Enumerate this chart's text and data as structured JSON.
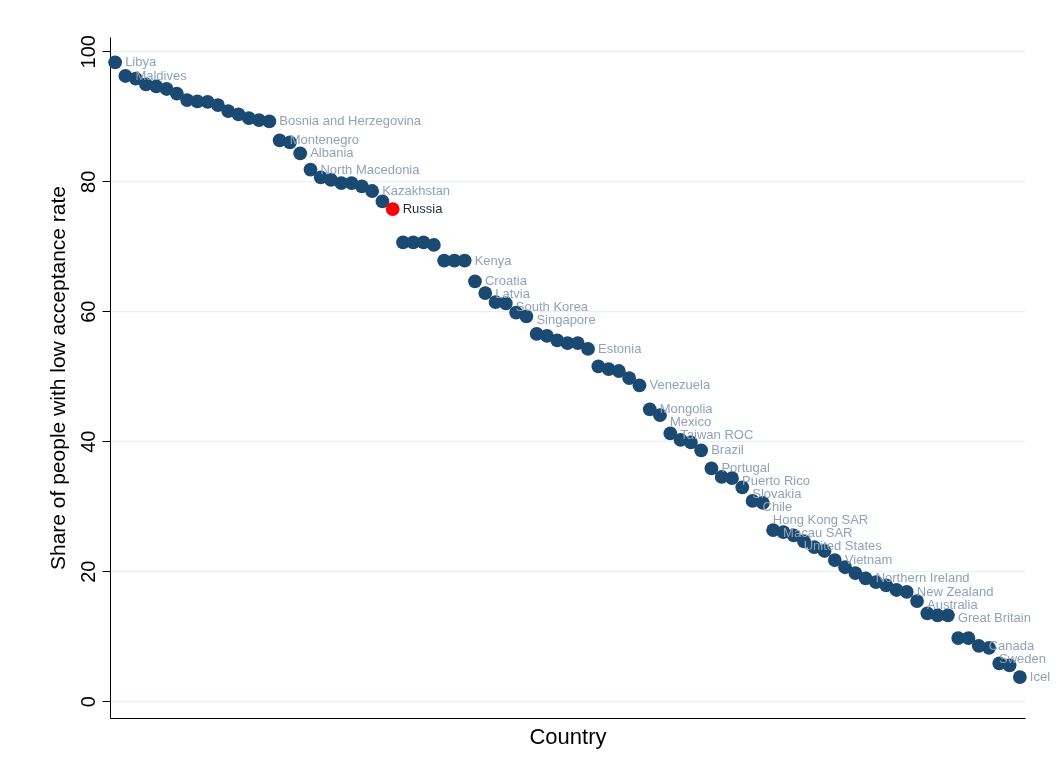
{
  "chart_data": {
    "type": "scatter",
    "xlabel": "Country",
    "ylabel": "Share of people with low acceptance rate",
    "categories": [
      null,
      null,
      null,
      null,
      null,
      null,
      null,
      null,
      null,
      null,
      null,
      null,
      null,
      null,
      null,
      null,
      null,
      null,
      null,
      null,
      null,
      null,
      null,
      null,
      null,
      null,
      null,
      null,
      null,
      null,
      null,
      null,
      null,
      null,
      null,
      null,
      null,
      null,
      null,
      null,
      null,
      null,
      null,
      null,
      null,
      null,
      null,
      null,
      null,
      null,
      null,
      null,
      null,
      null,
      null,
      null,
      null,
      null,
      null,
      null,
      null,
      null,
      null,
      null,
      null,
      null,
      null,
      null,
      null,
      null,
      null,
      null,
      null,
      null,
      null,
      null,
      null,
      null,
      null,
      null,
      null,
      null,
      null,
      null,
      null,
      null,
      null,
      null,
      null
    ],
    "series": [
      {
        "color": "#1a4a72",
        "values": [
          98.3,
          96.2,
          95.8,
          94.9,
          94.6,
          94.2,
          93.5,
          92.5,
          92.3,
          92.2,
          91.7,
          90.8,
          90.3,
          89.7,
          89.4,
          89.2,
          86.3,
          86.0,
          84.3,
          81.8,
          80.6,
          80.2,
          79.7,
          79.7,
          79.2,
          78.5,
          76.9,
          75.7,
          70.6,
          70.6,
          70.6,
          70.2,
          67.8,
          67.8,
          67.8,
          64.6,
          62.8,
          61.4,
          61.2,
          59.8,
          59.2,
          56.5,
          56.2,
          55.5,
          55.1,
          55.1,
          54.2,
          51.5,
          51.1,
          50.8,
          49.7,
          48.6,
          44.9,
          44.0,
          41.2,
          40.2,
          39.8,
          38.6,
          35.8,
          34.5,
          34.3,
          32.9,
          30.8,
          30.5,
          26.3,
          26.0,
          25.5,
          24.6,
          23.7,
          23.1,
          21.7,
          20.6,
          19.7,
          18.9,
          18.3,
          17.8,
          17.1,
          16.8,
          15.4,
          13.5,
          13.2,
          13.2,
          9.7,
          9.7,
          8.5,
          8.2,
          5.8,
          5.5,
          3.7
        ],
        "colors": [
          "#1a4a72",
          "#1a4a72",
          "#1a4a72",
          "#1a4a72",
          "#1a4a72",
          "#1a4a72",
          "#1a4a72",
          "#1a4a72",
          "#1a4a72",
          "#1a4a72",
          "#1a4a72",
          "#1a4a72",
          "#1a4a72",
          "#1a4a72",
          "#1a4a72",
          "#1a4a72",
          "#1a4a72",
          "#1a4a72",
          "#1a4a72",
          "#1a4a72",
          "#1a4a72",
          "#1a4a72",
          "#1a4a72",
          "#1a4a72",
          "#1a4a72",
          "#1a4a72",
          "#1a4a72",
          "#ff0000",
          "#1a4a72",
          "#1a4a72",
          "#1a4a72",
          "#1a4a72",
          "#1a4a72",
          "#1a4a72",
          "#1a4a72",
          "#1a4a72",
          "#1a4a72",
          "#1a4a72",
          "#1a4a72",
          "#1a4a72",
          "#1a4a72",
          "#1a4a72",
          "#1a4a72",
          "#1a4a72",
          "#1a4a72",
          "#1a4a72",
          "#1a4a72",
          "#1a4a72",
          "#1a4a72",
          "#1a4a72",
          "#1a4a72",
          "#1a4a72",
          "#1a4a72",
          "#1a4a72",
          "#1a4a72",
          "#1a4a72",
          "#1a4a72",
          "#1a4a72",
          "#1a4a72",
          "#1a4a72",
          "#1a4a72",
          "#1a4a72",
          "#1a4a72",
          "#1a4a72",
          "#1a4a72",
          "#1a4a72",
          "#1a4a72",
          "#1a4a72",
          "#1a4a72",
          "#1a4a72",
          "#1a4a72",
          "#1a4a72",
          "#1a4a72",
          "#1a4a72",
          "#1a4a72",
          "#1a4a72",
          "#1a4a72",
          "#1a4a72",
          "#1a4a72",
          "#1a4a72",
          "#1a4a72",
          "#1a4a72",
          "#1a4a72",
          "#1a4a72",
          "#1a4a72",
          "#1a4a72",
          "#1a4a72",
          "#1a4a72",
          "#1a4a72"
        ],
        "value_labels": [
          "Libya",
          "Maldives",
          null,
          null,
          null,
          null,
          null,
          null,
          null,
          null,
          null,
          null,
          null,
          null,
          null,
          "Bosnia and Herzegovina",
          "Montenegro",
          null,
          "Albania",
          "North Macedonia",
          null,
          null,
          null,
          null,
          null,
          "Kazakhstan",
          null,
          "Russia",
          null,
          null,
          null,
          null,
          null,
          null,
          "Kenya",
          "Croatia",
          "Latvia",
          null,
          "South Korea",
          null,
          "Singapore",
          null,
          null,
          null,
          null,
          null,
          "Estonia",
          null,
          null,
          null,
          null,
          "Venezuela",
          "Mongolia",
          "Mexico",
          "Taiwan ROC",
          null,
          null,
          "Brazil",
          "Portugal",
          null,
          "Puerto Rico",
          "Slovakia",
          "Chile",
          "Hong Kong SAR",
          "Macau SAR",
          null,
          "United States",
          null,
          null,
          null,
          "Vietnam",
          null,
          null,
          "Northern Ireland",
          null,
          null,
          null,
          "New Zealand",
          "Australia",
          null,
          null,
          "Great Britain",
          null,
          null,
          "Canada",
          "Sweden",
          null,
          null,
          "Icel"
        ]
      }
    ],
    "ylim": [
      -2.6,
      102.2
    ],
    "yticks": [
      0,
      20,
      40,
      60,
      80,
      100
    ],
    "grid": "y",
    "tick_labels": "y",
    "marker": "circle"
  }
}
